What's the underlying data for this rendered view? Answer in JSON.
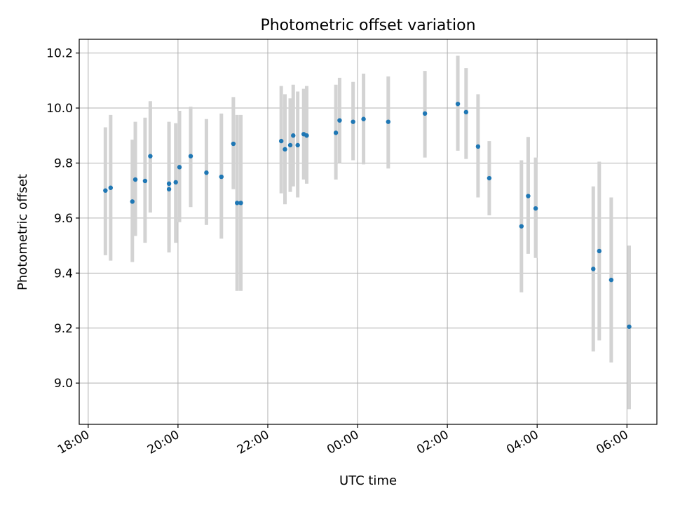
{
  "chart_data": {
    "type": "scatter",
    "title": "Photometric offset variation",
    "xlabel": "UTC time",
    "ylabel": "Photometric offset",
    "x_ticks": [
      "18:00",
      "20:00",
      "22:00",
      "00:00",
      "02:00",
      "04:00",
      "06:00"
    ],
    "y_ticks": [
      "9.0",
      "9.2",
      "9.4",
      "9.6",
      "9.8",
      "10.0",
      "10.2"
    ],
    "xlim": [
      "17:48",
      "06:40"
    ],
    "ylim": [
      8.85,
      10.25
    ],
    "grid": true,
    "colors": {
      "point": "#1f77b4",
      "errorbar": "#d3d3d3",
      "grid": "#b0b0b0"
    },
    "series": [
      {
        "points": [
          {
            "x": "18:23",
            "y": 9.7,
            "yerr_low": 9.465,
            "yerr_high": 9.93
          },
          {
            "x": "18:30",
            "y": 9.71,
            "yerr_low": 9.445,
            "yerr_high": 9.975
          },
          {
            "x": "18:59",
            "y": 9.66,
            "yerr_low": 9.44,
            "yerr_high": 9.885
          },
          {
            "x": "19:03",
            "y": 9.74,
            "yerr_low": 9.535,
            "yerr_high": 9.95
          },
          {
            "x": "19:16",
            "y": 9.735,
            "yerr_low": 9.51,
            "yerr_high": 9.965
          },
          {
            "x": "19:23",
            "y": 9.825,
            "yerr_low": 9.62,
            "yerr_high": 10.025
          },
          {
            "x": "19:48",
            "y": 9.705,
            "yerr_low": 9.475,
            "yerr_high": 9.94
          },
          {
            "x": "19:48",
            "y": 9.725,
            "yerr_low": 9.5,
            "yerr_high": 9.95
          },
          {
            "x": "19:57",
            "y": 9.73,
            "yerr_low": 9.51,
            "yerr_high": 9.945
          },
          {
            "x": "20:02",
            "y": 9.785,
            "yerr_low": 9.585,
            "yerr_high": 9.99
          },
          {
            "x": "20:17",
            "y": 9.825,
            "yerr_low": 9.64,
            "yerr_high": 10.005
          },
          {
            "x": "20:38",
            "y": 9.765,
            "yerr_low": 9.575,
            "yerr_high": 9.96
          },
          {
            "x": "20:58",
            "y": 9.75,
            "yerr_low": 9.525,
            "yerr_high": 9.98
          },
          {
            "x": "21:14",
            "y": 9.87,
            "yerr_low": 9.705,
            "yerr_high": 10.04
          },
          {
            "x": "21:19",
            "y": 9.655,
            "yerr_low": 9.335,
            "yerr_high": 9.975
          },
          {
            "x": "21:24",
            "y": 9.655,
            "yerr_low": 9.335,
            "yerr_high": 9.975
          },
          {
            "x": "22:18",
            "y": 9.88,
            "yerr_low": 9.69,
            "yerr_high": 10.08
          },
          {
            "x": "22:23",
            "y": 9.85,
            "yerr_low": 9.65,
            "yerr_high": 10.05
          },
          {
            "x": "22:30",
            "y": 9.865,
            "yerr_low": 9.695,
            "yerr_high": 10.035
          },
          {
            "x": "22:34",
            "y": 9.9,
            "yerr_low": 9.715,
            "yerr_high": 10.085
          },
          {
            "x": "22:40",
            "y": 9.865,
            "yerr_low": 9.675,
            "yerr_high": 10.06
          },
          {
            "x": "22:48",
            "y": 9.905,
            "yerr_low": 9.74,
            "yerr_high": 10.07
          },
          {
            "x": "22:52",
            "y": 9.9,
            "yerr_low": 9.725,
            "yerr_high": 10.08
          },
          {
            "x": "23:31",
            "y": 9.91,
            "yerr_low": 9.74,
            "yerr_high": 10.085
          },
          {
            "x": "23:36",
            "y": 9.955,
            "yerr_low": 9.8,
            "yerr_high": 10.11
          },
          {
            "x": "23:54",
            "y": 9.95,
            "yerr_low": 9.81,
            "yerr_high": 10.095
          },
          {
            "x": "00:08",
            "y": 9.96,
            "yerr_low": 9.795,
            "yerr_high": 10.125
          },
          {
            "x": "00:41",
            "y": 9.95,
            "yerr_low": 9.78,
            "yerr_high": 10.115
          },
          {
            "x": "01:30",
            "y": 9.98,
            "yerr_low": 9.82,
            "yerr_high": 10.135
          },
          {
            "x": "02:14",
            "y": 10.015,
            "yerr_low": 9.845,
            "yerr_high": 10.19
          },
          {
            "x": "02:25",
            "y": 9.985,
            "yerr_low": 9.815,
            "yerr_high": 10.145
          },
          {
            "x": "02:41",
            "y": 9.86,
            "yerr_low": 9.675,
            "yerr_high": 10.05
          },
          {
            "x": "02:56",
            "y": 9.745,
            "yerr_low": 9.61,
            "yerr_high": 9.88
          },
          {
            "x": "03:39",
            "y": 9.57,
            "yerr_low": 9.33,
            "yerr_high": 9.81
          },
          {
            "x": "03:48",
            "y": 9.68,
            "yerr_low": 9.47,
            "yerr_high": 9.895
          },
          {
            "x": "03:58",
            "y": 9.635,
            "yerr_low": 9.455,
            "yerr_high": 9.82
          },
          {
            "x": "05:15",
            "y": 9.415,
            "yerr_low": 9.115,
            "yerr_high": 9.715
          },
          {
            "x": "05:23",
            "y": 9.48,
            "yerr_low": 9.155,
            "yerr_high": 9.805
          },
          {
            "x": "05:39",
            "y": 9.375,
            "yerr_low": 9.075,
            "yerr_high": 9.675
          },
          {
            "x": "06:03",
            "y": 9.205,
            "yerr_low": 8.905,
            "yerr_high": 9.5
          }
        ]
      }
    ]
  }
}
